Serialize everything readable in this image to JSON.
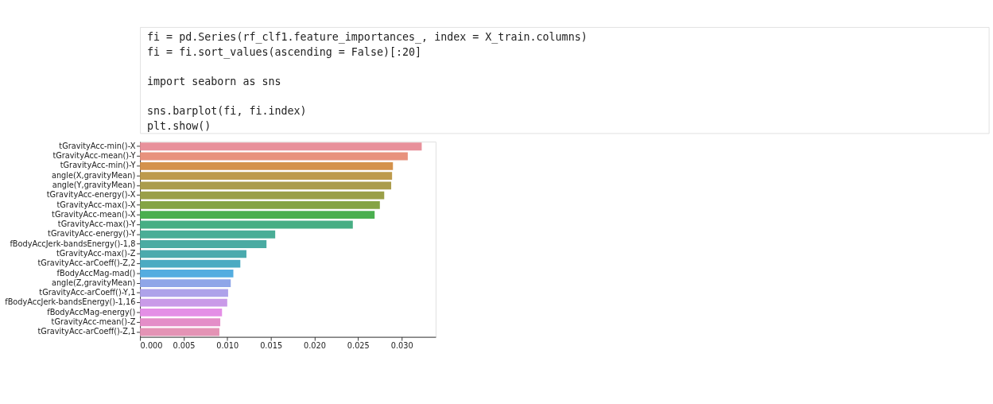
{
  "chart_data": {
    "type": "bar",
    "orientation": "horizontal",
    "categories": [
      "tGravityAcc-min()-X",
      "tGravityAcc-mean()-Y",
      "tGravityAcc-min()-Y",
      "angle(X,gravityMean)",
      "angle(Y,gravityMean)",
      "tGravityAcc-energy()-X",
      "tGravityAcc-max()-X",
      "tGravityAcc-mean()-X",
      "tGravityAcc-max()-Y",
      "tGravityAcc-energy()-Y",
      "fBodyAccJerk-bandsEnergy()-1,8",
      "tGravityAcc-max()-Z",
      "tGravityAcc-arCoeff()-Z,2",
      "fBodyAccMag-mad()",
      "angle(Z,gravityMean)",
      "tGravityAcc-arCoeff()-Y,1",
      "fBodyAccJerk-bandsEnergy()-1,16",
      "fBodyAccMag-energy()",
      "tGravityAcc-mean()-Z",
      "tGravityAcc-arCoeff()-Z,1"
    ],
    "values": [
      0.0323,
      0.0307,
      0.029,
      0.0289,
      0.0288,
      0.028,
      0.0275,
      0.0269,
      0.0244,
      0.0155,
      0.0145,
      0.0122,
      0.0115,
      0.0107,
      0.0104,
      0.0101,
      0.01,
      0.0094,
      0.0092,
      0.0091
    ],
    "colors": [
      "#e8919b",
      "#e8927d",
      "#d4924c",
      "#bd9a4c",
      "#ab9c4c",
      "#9a9f48",
      "#85a445",
      "#4aaf4f",
      "#47ae84",
      "#49ad96",
      "#4aaba2",
      "#4aaaad",
      "#4babc2",
      "#54ade0",
      "#8fa6e8",
      "#aea2ea",
      "#c99ae8",
      "#e48fe6",
      "#e48ec8",
      "#e493b5"
    ],
    "xlim": [
      0,
      0.0339
    ],
    "xticks": [
      {
        "value": 0,
        "label": "0.000"
      },
      {
        "value": 0.005,
        "label": "0.005"
      },
      {
        "value": 0.01,
        "label": "0.010"
      },
      {
        "value": 0.015,
        "label": "0.015"
      },
      {
        "value": 0.02,
        "label": "0.020"
      },
      {
        "value": 0.025,
        "label": "0.025"
      },
      {
        "value": 0.03,
        "label": "0.030"
      }
    ],
    "grid": false,
    "legend": false,
    "annotations": [
      "fi = pd.Series(rf_clf1.feature_importances_, index = X_train.columns)",
      "fi = fi.sort_values(ascending = False)[:20]",
      "import seaborn as sns",
      "sns.barplot(fi, fi.index)",
      "plt.show()"
    ]
  }
}
